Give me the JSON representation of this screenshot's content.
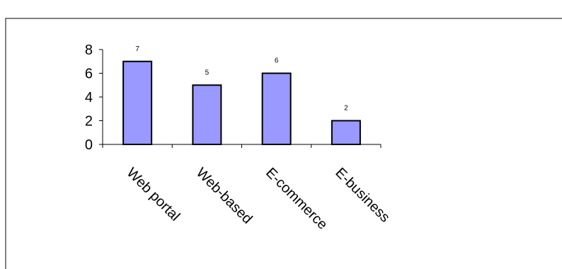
{
  "chart_data": {
    "type": "bar",
    "categories": [
      "Web portal",
      "Web-based",
      "E-commerce",
      "E-business"
    ],
    "values": [
      7,
      5,
      6,
      2
    ],
    "data_labels": [
      "7",
      "5",
      "6",
      "2"
    ],
    "ylim": [
      0,
      8
    ],
    "yticks": [
      0,
      2,
      4,
      6,
      8
    ],
    "grid": false,
    "legend": "none",
    "bar_color": "#9999ff",
    "bar_edge_color": "#000000",
    "title": "",
    "xlabel": "",
    "ylabel": ""
  }
}
